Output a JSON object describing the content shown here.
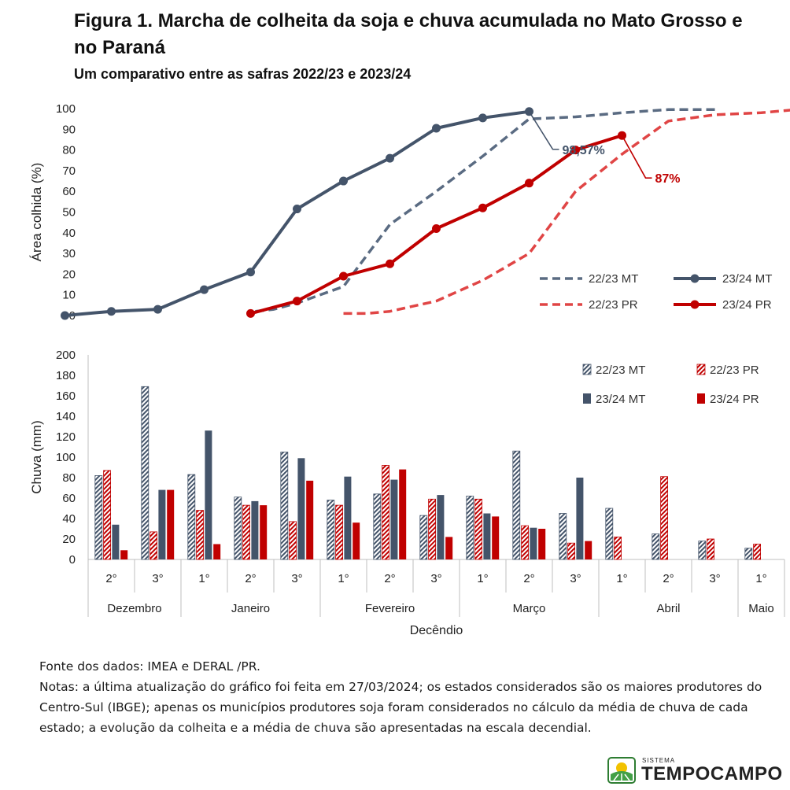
{
  "header": {
    "title": "Figura 1. Marcha de colheita da soja e chuva acumulada no Mato Grosso e no Paraná",
    "subtitle": "Um comparativo entre as safras 2022/23 e 2023/24"
  },
  "colors": {
    "mt": "#44546a",
    "mt_dash": "#5a6b82",
    "pr": "#c00000",
    "pr_dash": "#e04545"
  },
  "chart_data": [
    {
      "type": "line",
      "ylabel": "Área colhida (%)",
      "ylim": [
        0,
        100
      ],
      "yticks": [
        0,
        10,
        20,
        30,
        40,
        50,
        60,
        70,
        80,
        90,
        100
      ],
      "grid": false,
      "legend_position": "bottom-right",
      "x_positions_note": "x index 0 = Dezembro 1° decêndio (drawn left of the axis start), 1 = Dezembro 2°, ... 15 = Maio 1°",
      "series": [
        {
          "name": "22/23 MT",
          "style": "dashed",
          "points": [
            [
              4.1,
              2
            ],
            [
              4.5,
              3
            ],
            [
              5,
              6
            ],
            [
              6,
              14
            ],
            [
              7,
              44
            ],
            [
              8,
              60
            ],
            [
              9,
              77
            ],
            [
              10,
              95
            ],
            [
              11,
              96
            ],
            [
              12,
              98
            ],
            [
              13,
              99.5
            ],
            [
              14.1,
              99.5
            ]
          ]
        },
        {
          "name": "23/24 MT",
          "style": "solid-markers",
          "points": [
            [
              0,
              0
            ],
            [
              1,
              2
            ],
            [
              2,
              3
            ],
            [
              3,
              12.5
            ],
            [
              4,
              21
            ],
            [
              5,
              51.5
            ],
            [
              6,
              65
            ],
            [
              7,
              76
            ],
            [
              8,
              90.5
            ],
            [
              9,
              95.5
            ],
            [
              10,
              98.57
            ]
          ]
        },
        {
          "name": "22/23 PR",
          "style": "dashed",
          "points": [
            [
              6,
              1
            ],
            [
              6.5,
              1
            ],
            [
              7,
              2
            ],
            [
              8,
              7
            ],
            [
              9,
              17
            ],
            [
              10,
              30
            ],
            [
              11,
              60
            ],
            [
              12,
              78
            ],
            [
              13,
              94
            ],
            [
              14,
              97
            ],
            [
              15,
              98
            ],
            [
              16,
              100
            ]
          ]
        },
        {
          "name": "23/24 PR",
          "style": "solid-markers",
          "points": [
            [
              4,
              1
            ],
            [
              5,
              7
            ],
            [
              6,
              19
            ],
            [
              7,
              25
            ],
            [
              8,
              42
            ],
            [
              9,
              52
            ],
            [
              10,
              64
            ],
            [
              11,
              80
            ],
            [
              12,
              87
            ]
          ]
        }
      ],
      "annotations": [
        {
          "series": "23/24 MT",
          "label": "98,57%"
        },
        {
          "series": "23/24 PR",
          "label": "87%"
        }
      ]
    },
    {
      "type": "bar",
      "ylabel": "Chuva (mm)",
      "xlabel": "Decêndio",
      "ylim": [
        0,
        200
      ],
      "yticks": [
        0,
        20,
        40,
        60,
        80,
        100,
        120,
        140,
        160,
        180,
        200
      ],
      "grid": false,
      "legend_position": "top-right",
      "categories": [
        "2°",
        "3°",
        "1°",
        "2°",
        "3°",
        "1°",
        "2°",
        "3°",
        "1°",
        "2°",
        "3°",
        "1°",
        "2°",
        "3°",
        "1°"
      ],
      "months": [
        {
          "label": "Dezembro",
          "span": 2
        },
        {
          "label": "Janeiro",
          "span": 3
        },
        {
          "label": "Fevereiro",
          "span": 3
        },
        {
          "label": "Março",
          "span": 3
        },
        {
          "label": "Abril",
          "span": 3
        },
        {
          "label": "Maio",
          "span": 1
        }
      ],
      "series": [
        {
          "name": "22/23 MT",
          "pattern": "hatched",
          "color_key": "mt",
          "values": [
            82,
            169,
            83,
            61,
            105,
            58,
            64,
            43,
            62,
            106,
            45,
            50,
            25,
            18,
            11
          ]
        },
        {
          "name": "22/23 PR",
          "pattern": "hatched",
          "color_key": "pr",
          "values": [
            87,
            27,
            48,
            53,
            37,
            53,
            92,
            59,
            59,
            33,
            16,
            22,
            81,
            20,
            15
          ]
        },
        {
          "name": "23/24 MT",
          "pattern": "solid",
          "color_key": "mt",
          "values": [
            34,
            68,
            126,
            57,
            99,
            81,
            78,
            63,
            45,
            31,
            80,
            null,
            null,
            null,
            null
          ]
        },
        {
          "name": "23/24 PR",
          "pattern": "solid",
          "color_key": "pr",
          "values": [
            9,
            68,
            15,
            53,
            77,
            36,
            88,
            22,
            42,
            30,
            18,
            null,
            null,
            null,
            null
          ]
        }
      ]
    }
  ],
  "footer": {
    "source": "Fonte dos dados: IMEA e DERAL /PR.",
    "notes": "Notas: a última atualização do gráfico foi feita em 27/03/2024; os estados considerados são os maiores produtores do Centro-Sul (IBGE); apenas os municípios produtores soja foram considerados no cálculo da média de chuva de cada estado; a evolução da colheita e a média de chuva são apresentadas na escala decendial."
  },
  "logo": {
    "small_text": "SISTEMA",
    "main_text": "TEMPOCAMPO",
    "icon": "sun-field-logo-icon"
  }
}
